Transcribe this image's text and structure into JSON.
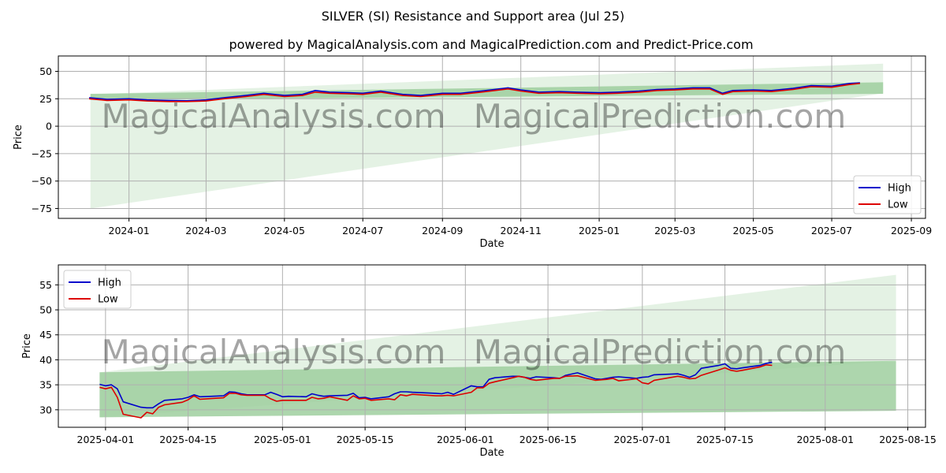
{
  "title": "SILVER (SI) Resistance and Support area (Jul 25)",
  "subtitle": "powered by MagicalAnalysis.com and MagicalPrediction.com and Predict-Price.com",
  "watermarks": [
    "MagicalAnalysis.com",
    "MagicalPrediction.com"
  ],
  "colors": {
    "high": "#0000cc",
    "low": "#dd0000",
    "band_light": "#cde7cd",
    "band_dark": "#9fcf9f"
  },
  "chart_data": [
    {
      "type": "line",
      "name": "top",
      "xlabel": "Date",
      "ylabel": "Price",
      "xlim": [
        "2023-11-07",
        "2025-09-12"
      ],
      "ylim": [
        -84,
        64
      ],
      "yticks": [
        50,
        25,
        0,
        -25,
        -50,
        -75
      ],
      "xticks": [
        "2024-01",
        "2024-03",
        "2024-05",
        "2024-07",
        "2024-09",
        "2024-11",
        "2025-01",
        "2025-03",
        "2025-05",
        "2025-07",
        "2025-09"
      ],
      "legend": [
        "High",
        "Low"
      ],
      "legend_position": "lower-right",
      "bands": [
        {
          "name": "resistance-support-wide",
          "x": [
            "2023-12-02",
            "2025-08-10"
          ],
          "upper": [
            29,
            57
          ],
          "lower": [
            -75,
            30
          ]
        },
        {
          "name": "resistance-support-narrow",
          "x": [
            "2023-12-02",
            "2025-08-10"
          ],
          "upper": [
            29.5,
            40
          ],
          "lower": [
            24,
            29.5
          ]
        }
      ],
      "series": [
        {
          "name": "High",
          "x": [
            "2023-12-01",
            "2023-12-15",
            "2024-01-01",
            "2024-01-15",
            "2024-02-01",
            "2024-02-15",
            "2024-03-01",
            "2024-03-15",
            "2024-04-01",
            "2024-04-15",
            "2024-05-01",
            "2024-05-15",
            "2024-05-25",
            "2024-06-05",
            "2024-06-20",
            "2024-07-01",
            "2024-07-15",
            "2024-08-01",
            "2024-08-15",
            "2024-09-01",
            "2024-09-15",
            "2024-10-01",
            "2024-10-22",
            "2024-11-01",
            "2024-11-15",
            "2024-12-01",
            "2024-12-15",
            "2025-01-01",
            "2025-01-15",
            "2025-02-01",
            "2025-02-15",
            "2025-03-01",
            "2025-03-15",
            "2025-03-28",
            "2025-04-07",
            "2025-04-15",
            "2025-05-01",
            "2025-05-15",
            "2025-06-01",
            "2025-06-15",
            "2025-07-01",
            "2025-07-15",
            "2025-07-23"
          ],
          "values": [
            26,
            24.5,
            25,
            24,
            23.5,
            23.2,
            24,
            26,
            28,
            30,
            28,
            29,
            32.5,
            31,
            30.5,
            30,
            32,
            29,
            28,
            30,
            30,
            32,
            35,
            33,
            31,
            31.5,
            31,
            30.5,
            31,
            32,
            33.5,
            34,
            35,
            35,
            30,
            32.5,
            33,
            32.5,
            34.5,
            37,
            36.5,
            39,
            39.5
          ]
        },
        {
          "name": "Low",
          "x": [
            "2023-12-01",
            "2023-12-15",
            "2024-01-01",
            "2024-01-15",
            "2024-02-01",
            "2024-02-15",
            "2024-03-01",
            "2024-03-15",
            "2024-04-01",
            "2024-04-15",
            "2024-05-01",
            "2024-05-15",
            "2024-05-25",
            "2024-06-05",
            "2024-06-20",
            "2024-07-01",
            "2024-07-15",
            "2024-08-01",
            "2024-08-15",
            "2024-09-01",
            "2024-09-15",
            "2024-10-01",
            "2024-10-22",
            "2024-11-01",
            "2024-11-15",
            "2024-12-01",
            "2024-12-15",
            "2025-01-01",
            "2025-01-15",
            "2025-02-01",
            "2025-02-15",
            "2025-03-01",
            "2025-03-15",
            "2025-03-28",
            "2025-04-07",
            "2025-04-15",
            "2025-05-01",
            "2025-05-15",
            "2025-06-01",
            "2025-06-15",
            "2025-07-01",
            "2025-07-15",
            "2025-07-23"
          ],
          "values": [
            25,
            23.5,
            24,
            23,
            22.5,
            22.5,
            23,
            25,
            27,
            29,
            27,
            28,
            31,
            30,
            29.5,
            29,
            31,
            28,
            27,
            29,
            29,
            31,
            34,
            32,
            30,
            30.5,
            30,
            29.5,
            30,
            31,
            32.5,
            33,
            34,
            34,
            29,
            31.5,
            32,
            31.5,
            33.5,
            36,
            35.5,
            38,
            39
          ]
        }
      ]
    },
    {
      "type": "line",
      "name": "bottom",
      "xlabel": "Date",
      "ylabel": "Price",
      "xlim": [
        "2025-03-24",
        "2025-08-18"
      ],
      "ylim": [
        26.5,
        59
      ],
      "yticks": [
        55,
        50,
        45,
        40,
        35,
        30
      ],
      "xticks": [
        "2025-04-01",
        "2025-04-15",
        "2025-05-01",
        "2025-05-15",
        "2025-06-01",
        "2025-06-15",
        "2025-07-01",
        "2025-07-15",
        "2025-08-01",
        "2025-08-15"
      ],
      "legend": [
        "High",
        "Low"
      ],
      "legend_position": "upper-left",
      "bands": [
        {
          "name": "resistance-support-wide",
          "x": [
            "2025-03-31",
            "2025-08-13"
          ],
          "upper": [
            37.5,
            57
          ],
          "lower": [
            28.5,
            39.8
          ]
        },
        {
          "name": "resistance-support-narrow",
          "x": [
            "2025-03-31",
            "2025-08-13"
          ],
          "upper": [
            37.5,
            39.8
          ],
          "lower": [
            28.5,
            29.8
          ]
        }
      ],
      "series": [
        {
          "name": "High",
          "x": [
            "2025-03-31",
            "2025-04-01",
            "2025-04-02",
            "2025-04-03",
            "2025-04-04",
            "2025-04-07",
            "2025-04-08",
            "2025-04-09",
            "2025-04-10",
            "2025-04-11",
            "2025-04-14",
            "2025-04-15",
            "2025-04-16",
            "2025-04-17",
            "2025-04-21",
            "2025-04-22",
            "2025-04-23",
            "2025-04-24",
            "2025-04-25",
            "2025-04-28",
            "2025-04-29",
            "2025-04-30",
            "2025-05-01",
            "2025-05-02",
            "2025-05-05",
            "2025-05-06",
            "2025-05-07",
            "2025-05-08",
            "2025-05-09",
            "2025-05-12",
            "2025-05-13",
            "2025-05-14",
            "2025-05-15",
            "2025-05-16",
            "2025-05-19",
            "2025-05-20",
            "2025-05-21",
            "2025-05-22",
            "2025-05-23",
            "2025-05-27",
            "2025-05-28",
            "2025-05-29",
            "2025-05-30",
            "2025-06-02",
            "2025-06-03",
            "2025-06-04",
            "2025-06-05",
            "2025-06-06",
            "2025-06-09",
            "2025-06-10",
            "2025-06-11",
            "2025-06-12",
            "2025-06-13",
            "2025-06-16",
            "2025-06-17",
            "2025-06-18",
            "2025-06-20",
            "2025-06-23",
            "2025-06-24",
            "2025-06-25",
            "2025-06-26",
            "2025-06-27",
            "2025-06-30",
            "2025-07-01",
            "2025-07-02",
            "2025-07-03",
            "2025-07-07",
            "2025-07-08",
            "2025-07-09",
            "2025-07-10",
            "2025-07-11",
            "2025-07-14",
            "2025-07-15",
            "2025-07-16",
            "2025-07-17",
            "2025-07-18",
            "2025-07-21",
            "2025-07-22",
            "2025-07-23"
          ],
          "values": [
            35.1,
            34.8,
            35,
            34.2,
            31.6,
            30.5,
            30.4,
            30.4,
            31.2,
            31.9,
            32.2,
            32.5,
            33,
            32.6,
            32.8,
            33.6,
            33.5,
            33.2,
            33,
            33,
            33.5,
            33.1,
            32.6,
            32.7,
            32.6,
            33.2,
            32.9,
            32.7,
            32.8,
            32.9,
            33.3,
            32.4,
            32.5,
            32.2,
            32.6,
            33.2,
            33.6,
            33.6,
            33.5,
            33.3,
            33.2,
            33.5,
            33.1,
            34.8,
            34.6,
            34.6,
            36.1,
            36.4,
            36.7,
            36.7,
            36.5,
            36.3,
            36.6,
            36.4,
            36.3,
            36.9,
            37.4,
            36.2,
            36.1,
            36.3,
            36.5,
            36.6,
            36.3,
            36.5,
            36.6,
            37,
            37.2,
            36.9,
            36.5,
            37,
            38.3,
            38.9,
            39.2,
            38.3,
            38.2,
            38.4,
            38.9,
            39.3,
            39.5
          ]
        },
        {
          "name": "Low",
          "x": [
            "2025-03-31",
            "2025-04-01",
            "2025-04-02",
            "2025-04-03",
            "2025-04-04",
            "2025-04-07",
            "2025-04-08",
            "2025-04-09",
            "2025-04-10",
            "2025-04-11",
            "2025-04-14",
            "2025-04-15",
            "2025-04-16",
            "2025-04-17",
            "2025-04-21",
            "2025-04-22",
            "2025-04-23",
            "2025-04-24",
            "2025-04-25",
            "2025-04-28",
            "2025-04-29",
            "2025-04-30",
            "2025-05-01",
            "2025-05-02",
            "2025-05-05",
            "2025-05-06",
            "2025-05-07",
            "2025-05-08",
            "2025-05-09",
            "2025-05-12",
            "2025-05-13",
            "2025-05-14",
            "2025-05-15",
            "2025-05-16",
            "2025-05-19",
            "2025-05-20",
            "2025-05-21",
            "2025-05-22",
            "2025-05-23",
            "2025-05-27",
            "2025-05-28",
            "2025-05-29",
            "2025-05-30",
            "2025-06-02",
            "2025-06-03",
            "2025-06-04",
            "2025-06-05",
            "2025-06-06",
            "2025-06-09",
            "2025-06-10",
            "2025-06-11",
            "2025-06-12",
            "2025-06-13",
            "2025-06-16",
            "2025-06-17",
            "2025-06-18",
            "2025-06-20",
            "2025-06-23",
            "2025-06-24",
            "2025-06-25",
            "2025-06-26",
            "2025-06-27",
            "2025-06-30",
            "2025-07-01",
            "2025-07-02",
            "2025-07-03",
            "2025-07-07",
            "2025-07-08",
            "2025-07-09",
            "2025-07-10",
            "2025-07-11",
            "2025-07-14",
            "2025-07-15",
            "2025-07-16",
            "2025-07-17",
            "2025-07-18",
            "2025-07-21",
            "2025-07-22",
            "2025-07-23"
          ],
          "values": [
            34.5,
            34.2,
            34.5,
            32.5,
            29.1,
            28.4,
            29.5,
            29.2,
            30.5,
            31,
            31.5,
            32,
            32.8,
            32.1,
            32.4,
            33.3,
            33.3,
            33,
            32.9,
            32.9,
            32.2,
            31.7,
            31.9,
            31.9,
            31.9,
            32.5,
            32.2,
            32.3,
            32.6,
            31.9,
            32.8,
            32.2,
            32.3,
            31.9,
            32.2,
            32,
            33,
            32.8,
            33.1,
            32.8,
            32.8,
            32.9,
            32.8,
            33.5,
            34.4,
            34.4,
            35.3,
            35.6,
            36.4,
            36.7,
            36.5,
            36.1,
            35.9,
            36.3,
            36.3,
            36.7,
            36.8,
            35.9,
            36,
            36.1,
            36.3,
            35.8,
            36.2,
            35.4,
            35.2,
            35.9,
            36.7,
            36.5,
            36.2,
            36.3,
            36.9,
            38,
            38.4,
            37.9,
            37.7,
            37.9,
            38.6,
            39,
            38.9
          ]
        }
      ]
    }
  ]
}
